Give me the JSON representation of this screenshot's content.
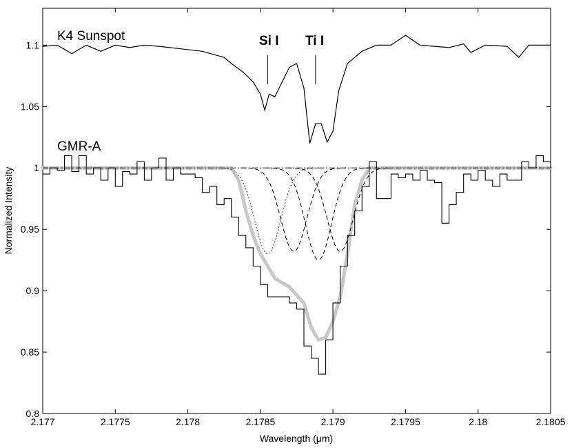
{
  "chart_data": {
    "type": "line",
    "xlabel": "Wavelength (μm)",
    "ylabel": "Normalized Intensity",
    "xlim": [
      2.177,
      2.1805
    ],
    "ylim": [
      0.8,
      1.13
    ],
    "grid": false,
    "x_ticks": [
      2.177,
      2.1775,
      2.178,
      2.1785,
      2.179,
      2.1795,
      2.18,
      2.1805
    ],
    "x_tick_labels": [
      "2.177",
      "2.1775",
      "2.178",
      "2.1785",
      "2.179",
      "2.1795",
      "2.18",
      "2.1805"
    ],
    "y_ticks": [
      0.8,
      0.85,
      0.9,
      0.95,
      1.0,
      1.05,
      1.1
    ],
    "y_tick_labels": [
      "0.8",
      "0.85",
      "0.9",
      "0.95",
      "1",
      "1.05",
      "1.1"
    ],
    "annotations": {
      "sunspot_label": "K4 Sunspot",
      "gmr_label": "GMR-A",
      "si_label": "Si I",
      "ti_label": "Ti I",
      "si_wavelength": 2.17855,
      "ti_wavelength": 2.17888
    },
    "series": [
      {
        "style": "solid-thin",
        "points": [
          [
            2.177,
            1.099
          ],
          [
            2.1771,
            1.1
          ],
          [
            2.1772,
            1.093
          ],
          [
            2.1773,
            1.1
          ],
          [
            2.1774,
            1.095
          ],
          [
            2.1775,
            1.1
          ],
          [
            2.1776,
            1.098
          ],
          [
            2.1777,
            1.1
          ],
          [
            2.1778,
            1.099
          ],
          [
            2.17795,
            1.097
          ],
          [
            2.1781,
            1.095
          ],
          [
            2.17825,
            1.09
          ],
          [
            2.1783,
            1.085
          ],
          [
            2.17838,
            1.078
          ],
          [
            2.17845,
            1.07
          ],
          [
            2.1785,
            1.06
          ],
          [
            2.17853,
            1.047
          ],
          [
            2.17856,
            1.06
          ],
          [
            2.1786,
            1.058
          ],
          [
            2.17865,
            1.07
          ],
          [
            2.1787,
            1.082
          ],
          [
            2.17875,
            1.085
          ],
          [
            2.1788,
            1.065
          ],
          [
            2.17884,
            1.02
          ],
          [
            2.17888,
            1.036
          ],
          [
            2.17892,
            1.036
          ],
          [
            2.17896,
            1.021
          ],
          [
            2.179,
            1.03
          ],
          [
            2.17904,
            1.063
          ],
          [
            2.1791,
            1.085
          ],
          [
            2.1792,
            1.095
          ],
          [
            2.1793,
            1.1
          ],
          [
            2.1794,
            1.1
          ],
          [
            2.1795,
            1.108
          ],
          [
            2.1796,
            1.1
          ],
          [
            2.1798,
            1.098
          ],
          [
            2.1799,
            1.101
          ],
          [
            2.17995,
            1.094
          ],
          [
            2.18005,
            1.1
          ],
          [
            2.1802,
            1.099
          ],
          [
            2.18028,
            1.09
          ],
          [
            2.18035,
            1.1
          ],
          [
            2.1805,
            1.1
          ]
        ]
      },
      {
        "style": "step-histogram",
        "points": [
          [
            2.177,
            0.995
          ],
          [
            2.17705,
            1.0
          ],
          [
            2.1771,
            0.998
          ],
          [
            2.17715,
            1.01
          ],
          [
            2.1772,
            0.997
          ],
          [
            2.17725,
            1.01
          ],
          [
            2.1773,
            0.995
          ],
          [
            2.17735,
            1.0
          ],
          [
            2.1774,
            0.99
          ],
          [
            2.17745,
            1.0
          ],
          [
            2.1775,
            0.985
          ],
          [
            2.17755,
            0.997
          ],
          [
            2.1776,
            0.995
          ],
          [
            2.17765,
            1.005
          ],
          [
            2.1777,
            0.99
          ],
          [
            2.17775,
            1.0
          ],
          [
            2.1778,
            1.008
          ],
          [
            2.17785,
            0.99
          ],
          [
            2.1779,
            1.0
          ],
          [
            2.17795,
            0.995
          ],
          [
            2.178,
            0.995
          ],
          [
            2.17805,
            0.992
          ],
          [
            2.1781,
            0.98
          ],
          [
            2.17815,
            0.985
          ],
          [
            2.1782,
            0.97
          ],
          [
            2.17825,
            0.975
          ],
          [
            2.1783,
            0.96
          ],
          [
            2.17835,
            0.945
          ],
          [
            2.1784,
            0.935
          ],
          [
            2.17845,
            0.92
          ],
          [
            2.1785,
            0.905
          ],
          [
            2.17855,
            0.895
          ],
          [
            2.1786,
            0.895
          ],
          [
            2.17865,
            0.895
          ],
          [
            2.1787,
            0.89
          ],
          [
            2.17875,
            0.885
          ],
          [
            2.1788,
            0.855
          ],
          [
            2.17885,
            0.845
          ],
          [
            2.1789,
            0.832
          ],
          [
            2.17895,
            0.86
          ],
          [
            2.179,
            0.89
          ],
          [
            2.17905,
            0.92
          ],
          [
            2.1791,
            0.945
          ],
          [
            2.17915,
            0.965
          ],
          [
            2.1792,
            0.985
          ],
          [
            2.17925,
            1.005
          ],
          [
            2.1793,
            0.975
          ],
          [
            2.17935,
            0.975
          ],
          [
            2.1794,
            0.995
          ],
          [
            2.17945,
            0.992
          ],
          [
            2.1795,
            0.995
          ],
          [
            2.17955,
            0.99
          ],
          [
            2.1796,
            0.998
          ],
          [
            2.17965,
            0.99
          ],
          [
            2.1797,
            0.988
          ],
          [
            2.17975,
            0.955
          ],
          [
            2.1798,
            0.97
          ],
          [
            2.17985,
            0.98
          ],
          [
            2.1799,
            0.995
          ],
          [
            2.17995,
            0.99
          ],
          [
            2.18,
            0.998
          ],
          [
            2.18005,
            0.99
          ],
          [
            2.1801,
            0.985
          ],
          [
            2.18015,
            0.995
          ],
          [
            2.1802,
            0.99
          ],
          [
            2.18025,
            0.99
          ],
          [
            2.1803,
            1.005
          ],
          [
            2.18035,
            1.0
          ],
          [
            2.1804,
            1.01
          ],
          [
            2.18045,
            1.005
          ],
          [
            2.1805,
            1.0
          ]
        ]
      },
      {
        "style": "model-thick-gray",
        "points": [
          [
            2.177,
            1.0
          ],
          [
            2.1783,
            1.0
          ],
          [
            2.17835,
            0.99
          ],
          [
            2.1784,
            0.965
          ],
          [
            2.17845,
            0.945
          ],
          [
            2.1785,
            0.93
          ],
          [
            2.17855,
            0.92
          ],
          [
            2.1786,
            0.91
          ],
          [
            2.1787,
            0.903
          ],
          [
            2.1788,
            0.89
          ],
          [
            2.17885,
            0.87
          ],
          [
            2.1789,
            0.86
          ],
          [
            2.17895,
            0.862
          ],
          [
            2.179,
            0.875
          ],
          [
            2.17905,
            0.895
          ],
          [
            2.1791,
            0.93
          ],
          [
            2.17915,
            0.97
          ],
          [
            2.1792,
            0.99
          ],
          [
            2.17925,
            1.0
          ],
          [
            2.1805,
            1.0
          ]
        ]
      },
      {
        "style": "continuum-dashdot",
        "points": [
          [
            2.177,
            1.0
          ],
          [
            2.1805,
            1.0
          ]
        ]
      },
      {
        "style": "component-dotted",
        "center": 2.17855,
        "depth": 0.07,
        "sigma": 9e-05
      },
      {
        "style": "component-dashed",
        "center": 2.17873,
        "depth": 0.068,
        "sigma": 9e-05
      },
      {
        "style": "component-dashed",
        "center": 2.1789,
        "depth": 0.075,
        "sigma": 9e-05
      },
      {
        "style": "component-dashed",
        "center": 2.17905,
        "depth": 0.068,
        "sigma": 9e-05
      }
    ]
  }
}
